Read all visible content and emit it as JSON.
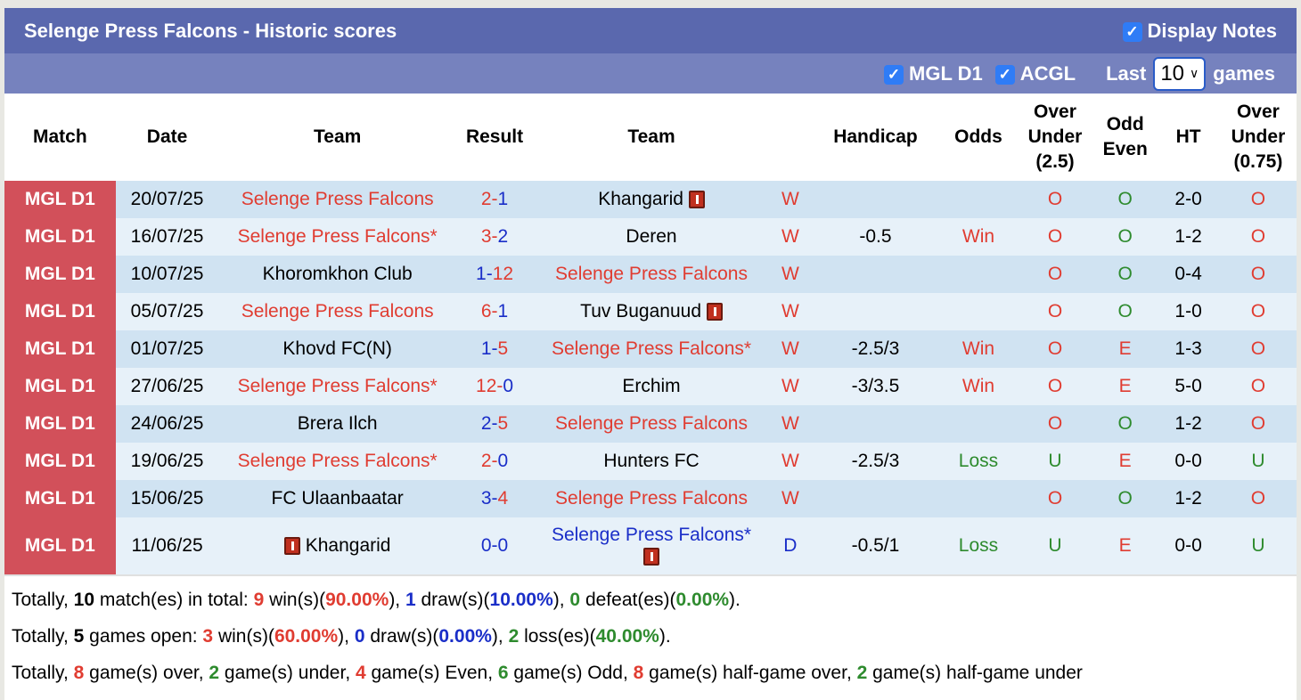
{
  "title": "Selenge Press Falcons - Historic scores",
  "display_notes": {
    "label": "Display Notes",
    "checked": true
  },
  "filters": {
    "mgl": {
      "label": "MGL D1",
      "checked": true
    },
    "acgl": {
      "label": "ACGL",
      "checked": true
    },
    "last_label": "Last",
    "games_value": "10",
    "games_label": "games"
  },
  "headers": [
    "Match",
    "Date",
    "Team",
    "Result",
    "Team",
    "",
    "Handicap",
    "Odds",
    "Over Under (2.5)",
    "Odd Even",
    "HT",
    "Over Under (0.75)"
  ],
  "colors": {
    "win": "#e03c31",
    "draw": "#1a2ec8",
    "loss": "#2e8b2e",
    "match_bg": "#d2505a"
  },
  "rows": [
    {
      "match": "MGL D1",
      "date": "20/07/25",
      "home": "Selenge Press Falcons",
      "home_c": "red",
      "hs": "2",
      "as": "1",
      "hs_c": "red",
      "as_c": "blue",
      "away": "Khangarid",
      "away_c": "",
      "away_icon": "after",
      "res": "W",
      "hcp": "",
      "odds": "",
      "odds_c": "",
      "ou": "O",
      "oe": "O",
      "ht": "2-0",
      "ou2": "O"
    },
    {
      "match": "MGL D1",
      "date": "16/07/25",
      "home": "Selenge Press Falcons*",
      "home_c": "red",
      "hs": "3",
      "as": "2",
      "hs_c": "red",
      "as_c": "blue",
      "away": "Deren",
      "away_c": "",
      "res": "W",
      "hcp": "-0.5",
      "odds": "Win",
      "odds_c": "red",
      "ou": "O",
      "oe": "O",
      "ht": "1-2",
      "ou2": "O"
    },
    {
      "match": "MGL D1",
      "date": "10/07/25",
      "home": "Khoromkhon Club",
      "home_c": "",
      "hs": "1",
      "as": "12",
      "hs_c": "blue",
      "as_c": "red",
      "away": "Selenge Press Falcons",
      "away_c": "red",
      "res": "W",
      "hcp": "",
      "odds": "",
      "odds_c": "",
      "ou": "O",
      "oe": "O",
      "ht": "0-4",
      "ou2": "O"
    },
    {
      "match": "MGL D1",
      "date": "05/07/25",
      "home": "Selenge Press Falcons",
      "home_c": "red",
      "hs": "6",
      "as": "1",
      "hs_c": "red",
      "as_c": "blue",
      "away": "Tuv Buganuud",
      "away_c": "",
      "away_icon": "after",
      "res": "W",
      "hcp": "",
      "odds": "",
      "odds_c": "",
      "ou": "O",
      "oe": "O",
      "ht": "1-0",
      "ou2": "O"
    },
    {
      "match": "MGL D1",
      "date": "01/07/25",
      "home": "Khovd FC(N)",
      "home_c": "",
      "hs": "1",
      "as": "5",
      "hs_c": "blue",
      "as_c": "red",
      "away": "Selenge Press Falcons*",
      "away_c": "red",
      "res": "W",
      "hcp": "-2.5/3",
      "odds": "Win",
      "odds_c": "red",
      "ou": "O",
      "oe": "E",
      "ht": "1-3",
      "ou2": "O"
    },
    {
      "match": "MGL D1",
      "date": "27/06/25",
      "home": "Selenge Press Falcons*",
      "home_c": "red",
      "hs": "12",
      "as": "0",
      "hs_c": "red",
      "as_c": "blue",
      "away": "Erchim",
      "away_c": "",
      "res": "W",
      "hcp": "-3/3.5",
      "odds": "Win",
      "odds_c": "red",
      "ou": "O",
      "oe": "E",
      "ht": "5-0",
      "ou2": "O"
    },
    {
      "match": "MGL D1",
      "date": "24/06/25",
      "home": "Brera Ilch",
      "home_c": "",
      "hs": "2",
      "as": "5",
      "hs_c": "blue",
      "as_c": "red",
      "away": "Selenge Press Falcons",
      "away_c": "red",
      "res": "W",
      "hcp": "",
      "odds": "",
      "odds_c": "",
      "ou": "O",
      "oe": "O",
      "ht": "1-2",
      "ou2": "O"
    },
    {
      "match": "MGL D1",
      "date": "19/06/25",
      "home": "Selenge Press Falcons*",
      "home_c": "red",
      "hs": "2",
      "as": "0",
      "hs_c": "red",
      "as_c": "blue",
      "away": "Hunters FC",
      "away_c": "",
      "res": "W",
      "hcp": "-2.5/3",
      "odds": "Loss",
      "odds_c": "green",
      "ou": "U",
      "oe": "E",
      "ht": "0-0",
      "ou2": "U"
    },
    {
      "match": "MGL D1",
      "date": "15/06/25",
      "home": "FC Ulaanbaatar",
      "home_c": "",
      "hs": "3",
      "as": "4",
      "hs_c": "blue",
      "as_c": "red",
      "away": "Selenge Press Falcons",
      "away_c": "red",
      "res": "W",
      "hcp": "",
      "odds": "",
      "odds_c": "",
      "ou": "O",
      "oe": "O",
      "ht": "1-2",
      "ou2": "O"
    },
    {
      "match": "MGL D1",
      "date": "11/06/25",
      "home": "Khangarid",
      "home_c": "",
      "home_icon": "before",
      "hs": "0",
      "as": "0",
      "hs_c": "blue",
      "as_c": "blue",
      "away": "Selenge Press Falcons*",
      "away_c": "blue",
      "away_icon": "below",
      "res": "D",
      "hcp": "-0.5/1",
      "odds": "Loss",
      "odds_c": "green",
      "ou": "U",
      "oe": "E",
      "ht": "0-0",
      "ou2": "U"
    }
  ],
  "summary": [
    [
      {
        "t": "Totally, "
      },
      {
        "t": "10",
        "c": "",
        "b": 1
      },
      {
        "t": " match(es) in total: "
      },
      {
        "t": "9",
        "c": "red",
        "b": 1
      },
      {
        "t": " win(s)("
      },
      {
        "t": "90.00%",
        "c": "red",
        "b": 1
      },
      {
        "t": "), "
      },
      {
        "t": "1",
        "c": "blue",
        "b": 1
      },
      {
        "t": " draw(s)("
      },
      {
        "t": "10.00%",
        "c": "blue",
        "b": 1
      },
      {
        "t": "), "
      },
      {
        "t": "0",
        "c": "green",
        "b": 1
      },
      {
        "t": " defeat(es)("
      },
      {
        "t": "0.00%",
        "c": "green",
        "b": 1
      },
      {
        "t": ")."
      }
    ],
    [
      {
        "t": "Totally, "
      },
      {
        "t": "5",
        "c": "",
        "b": 1
      },
      {
        "t": " games open: "
      },
      {
        "t": "3",
        "c": "red",
        "b": 1
      },
      {
        "t": " win(s)("
      },
      {
        "t": "60.00%",
        "c": "red",
        "b": 1
      },
      {
        "t": "), "
      },
      {
        "t": "0",
        "c": "blue",
        "b": 1
      },
      {
        "t": " draw(s)("
      },
      {
        "t": "0.00%",
        "c": "blue",
        "b": 1
      },
      {
        "t": "), "
      },
      {
        "t": "2",
        "c": "green",
        "b": 1
      },
      {
        "t": " loss(es)("
      },
      {
        "t": "40.00%",
        "c": "green",
        "b": 1
      },
      {
        "t": ")."
      }
    ],
    [
      {
        "t": "Totally, "
      },
      {
        "t": "8",
        "c": "red",
        "b": 1
      },
      {
        "t": " game(s) over, "
      },
      {
        "t": "2",
        "c": "green",
        "b": 1
      },
      {
        "t": " game(s) under, "
      },
      {
        "t": "4",
        "c": "red",
        "b": 1
      },
      {
        "t": " game(s) Even, "
      },
      {
        "t": "6",
        "c": "green",
        "b": 1
      },
      {
        "t": " game(s) Odd, "
      },
      {
        "t": "8",
        "c": "red",
        "b": 1
      },
      {
        "t": " game(s) half-game over, "
      },
      {
        "t": "2",
        "c": "green",
        "b": 1
      },
      {
        "t": " game(s) half-game under"
      }
    ]
  ]
}
